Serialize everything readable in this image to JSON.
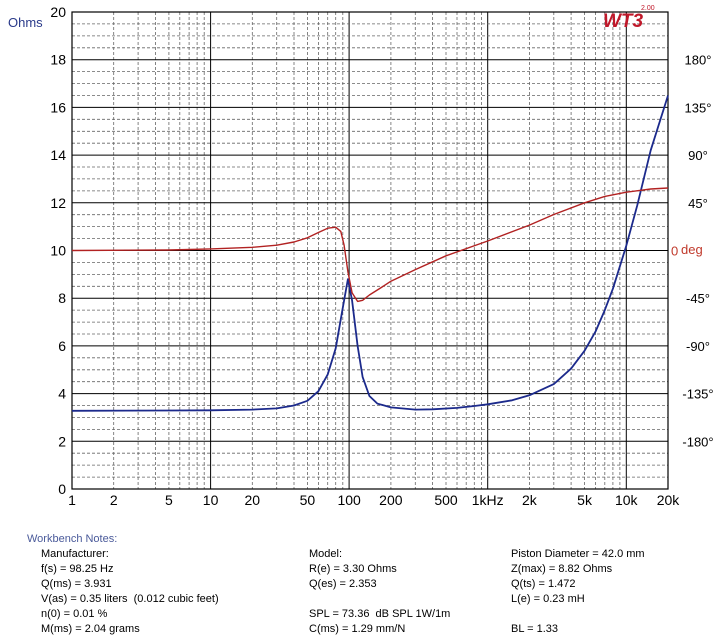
{
  "chart_data": {
    "type": "line",
    "logo": "WT3",
    "logo_version": "2.00",
    "left_axis_label": "Ohms",
    "right_axis_label": "deg",
    "y_ticks": [
      "0",
      "2",
      "4",
      "6",
      "8",
      "10",
      "12",
      "14",
      "16",
      "18",
      "20"
    ],
    "y_lim": [
      0,
      20
    ],
    "phase_ticks": [
      "180°",
      "135°",
      "90°",
      "45°",
      "0",
      "-45°",
      "-90°",
      "-135°",
      "-180°"
    ],
    "phase_values": [
      180,
      135,
      90,
      45,
      0,
      -45,
      -90,
      -135,
      -180
    ],
    "x_tick_labels": [
      {
        "v": 1,
        "t": "1"
      },
      {
        "v": 2,
        "t": "2"
      },
      {
        "v": 5,
        "t": "5"
      },
      {
        "v": 10,
        "t": "10"
      },
      {
        "v": 20,
        "t": "20"
      },
      {
        "v": 50,
        "t": "50"
      },
      {
        "v": 100,
        "t": "100"
      },
      {
        "v": 200,
        "t": "200"
      },
      {
        "v": 500,
        "t": "500"
      },
      {
        "v": 1000,
        "t": "1kHz"
      },
      {
        "v": 2000,
        "t": "2k"
      },
      {
        "v": 5000,
        "t": "5k"
      },
      {
        "v": 10000,
        "t": "10k"
      },
      {
        "v": 20000,
        "t": "20k"
      }
    ],
    "x_lim": [
      1,
      20000
    ],
    "x_scale": "log",
    "grid": true,
    "series": [
      {
        "color": "#1c2a8c",
        "axis": "ohms",
        "points": [
          [
            1,
            3.28
          ],
          [
            5,
            3.29
          ],
          [
            10,
            3.3
          ],
          [
            20,
            3.33
          ],
          [
            30,
            3.38
          ],
          [
            40,
            3.5
          ],
          [
            50,
            3.7
          ],
          [
            60,
            4.1
          ],
          [
            70,
            4.8
          ],
          [
            80,
            5.9
          ],
          [
            90,
            7.6
          ],
          [
            98,
            8.8
          ],
          [
            105,
            7.9
          ],
          [
            115,
            6.0
          ],
          [
            125,
            4.7
          ],
          [
            140,
            3.9
          ],
          [
            160,
            3.58
          ],
          [
            200,
            3.42
          ],
          [
            300,
            3.33
          ],
          [
            400,
            3.34
          ],
          [
            600,
            3.4
          ],
          [
            800,
            3.48
          ],
          [
            1000,
            3.55
          ],
          [
            1500,
            3.72
          ],
          [
            2000,
            3.93
          ],
          [
            3000,
            4.4
          ],
          [
            4000,
            5.05
          ],
          [
            5000,
            5.8
          ],
          [
            6000,
            6.6
          ],
          [
            7000,
            7.5
          ],
          [
            8000,
            8.4
          ],
          [
            10000,
            10.2
          ],
          [
            12000,
            11.9
          ],
          [
            15000,
            14.2
          ],
          [
            20000,
            16.5
          ]
        ]
      },
      {
        "color": "#b22222",
        "axis": "deg",
        "points": [
          [
            1,
            0
          ],
          [
            5,
            0.5
          ],
          [
            10,
            1.5
          ],
          [
            20,
            3
          ],
          [
            30,
            5
          ],
          [
            40,
            8
          ],
          [
            50,
            12
          ],
          [
            60,
            17
          ],
          [
            70,
            21
          ],
          [
            80,
            22
          ],
          [
            87,
            18
          ],
          [
            92,
            5
          ],
          [
            98,
            -20
          ],
          [
            105,
            -40
          ],
          [
            115,
            -48
          ],
          [
            125,
            -47
          ],
          [
            140,
            -42
          ],
          [
            170,
            -35
          ],
          [
            200,
            -29
          ],
          [
            300,
            -18
          ],
          [
            500,
            -5
          ],
          [
            1000,
            9
          ],
          [
            2000,
            24
          ],
          [
            3000,
            34
          ],
          [
            5000,
            45
          ],
          [
            7000,
            51
          ],
          [
            10000,
            55
          ],
          [
            15000,
            58
          ],
          [
            20000,
            59
          ]
        ]
      }
    ]
  },
  "notes": {
    "title": "Workbench Notes:",
    "manufacturer": "Manufacturer:",
    "fs": "f(s) = 98.25 Hz",
    "qms": "Q(ms) = 3.931",
    "vas": "V(as) = 0.35 liters  (0.012 cubic feet)",
    "n0": "n(0) = 0.01 %",
    "mms": "M(ms) = 2.04 grams",
    "model": "Model:",
    "re": "R(e) = 3.30 Ohms",
    "qes": "Q(es) = 2.353",
    "spl": "SPL = 73.36  dB SPL 1W/1m",
    "cms": "C(ms) = 1.29 mm/N",
    "piston": "Piston Diameter = 42.0 mm",
    "zmax": "Z(max) = 8.82 Ohms",
    "qts": "Q(ts) = 1.472",
    "le": "L(e) = 0.23 mH",
    "bl": "BL = 1.33"
  }
}
